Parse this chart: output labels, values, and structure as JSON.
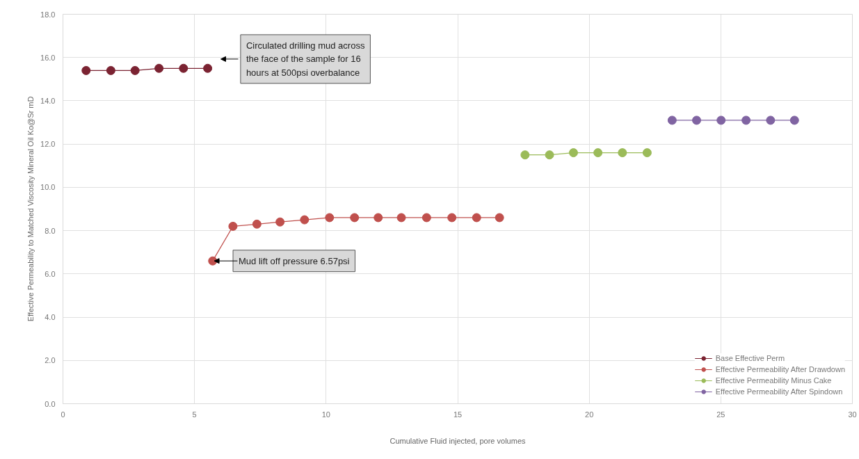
{
  "chart_data": {
    "type": "line",
    "xlabel": "Cumulative Fluid injected, pore volumes",
    "ylabel": "Effective Permeability to Matched Viscosity Mineral Oil Ko@Sr mD",
    "xlim": [
      0,
      30
    ],
    "ylim": [
      0,
      18
    ],
    "xticks": [
      0,
      5,
      10,
      15,
      20,
      25,
      30
    ],
    "yticks": [
      {
        "value": 0,
        "label": "0.0"
      },
      {
        "value": 2,
        "label": "2.0"
      },
      {
        "value": 4,
        "label": "4.0"
      },
      {
        "value": 6,
        "label": "6.0"
      },
      {
        "value": 8,
        "label": "8.0"
      },
      {
        "value": 10,
        "label": "10.0"
      },
      {
        "value": 12,
        "label": "12.0"
      },
      {
        "value": 14,
        "label": "14.0"
      },
      {
        "value": 16,
        "label": "16.0"
      },
      {
        "value": 18,
        "label": "18.0"
      }
    ],
    "grid": true,
    "legend": "bottom right",
    "marker": "circle",
    "line_style": "solid",
    "series": [
      {
        "name": "Base Effective Perm",
        "color": "#7b2332",
        "x": [
          0.88,
          1.82,
          2.74,
          3.65,
          4.58,
          5.5
        ],
        "values": [
          15.4,
          15.4,
          15.4,
          15.5,
          15.5,
          15.5
        ]
      },
      {
        "name": "Effective Permeability After Drawdown",
        "color": "#c0504d",
        "x": [
          5.69,
          6.46,
          7.37,
          8.25,
          9.18,
          10.13,
          11.08,
          11.98,
          12.86,
          13.82,
          14.78,
          15.72,
          16.59
        ],
        "values": [
          6.6,
          8.2,
          8.3,
          8.4,
          8.5,
          8.6,
          8.6,
          8.6,
          8.6,
          8.6,
          8.6,
          8.6,
          8.6
        ]
      },
      {
        "name": "Effective Permeability Minus Cake",
        "color": "#9bbb59",
        "x": [
          17.56,
          18.49,
          19.4,
          20.33,
          21.26,
          22.2
        ],
        "values": [
          11.5,
          11.5,
          11.6,
          11.6,
          11.6,
          11.6
        ]
      },
      {
        "name": "Effective Permeability After Spindown",
        "color": "#8064a2",
        "x": [
          23.15,
          24.08,
          25.01,
          25.96,
          26.89,
          27.8
        ],
        "values": [
          13.1,
          13.1,
          13.1,
          13.1,
          13.1,
          13.1
        ]
      }
    ],
    "annotations": [
      "Circulated drilling mud across the face of the sample for 16 hours at 500psi overbalance",
      {
        "text": "Mud lift off pressure 6.57psi",
        "x": 5.75,
        "y": 6.6
      }
    ]
  }
}
